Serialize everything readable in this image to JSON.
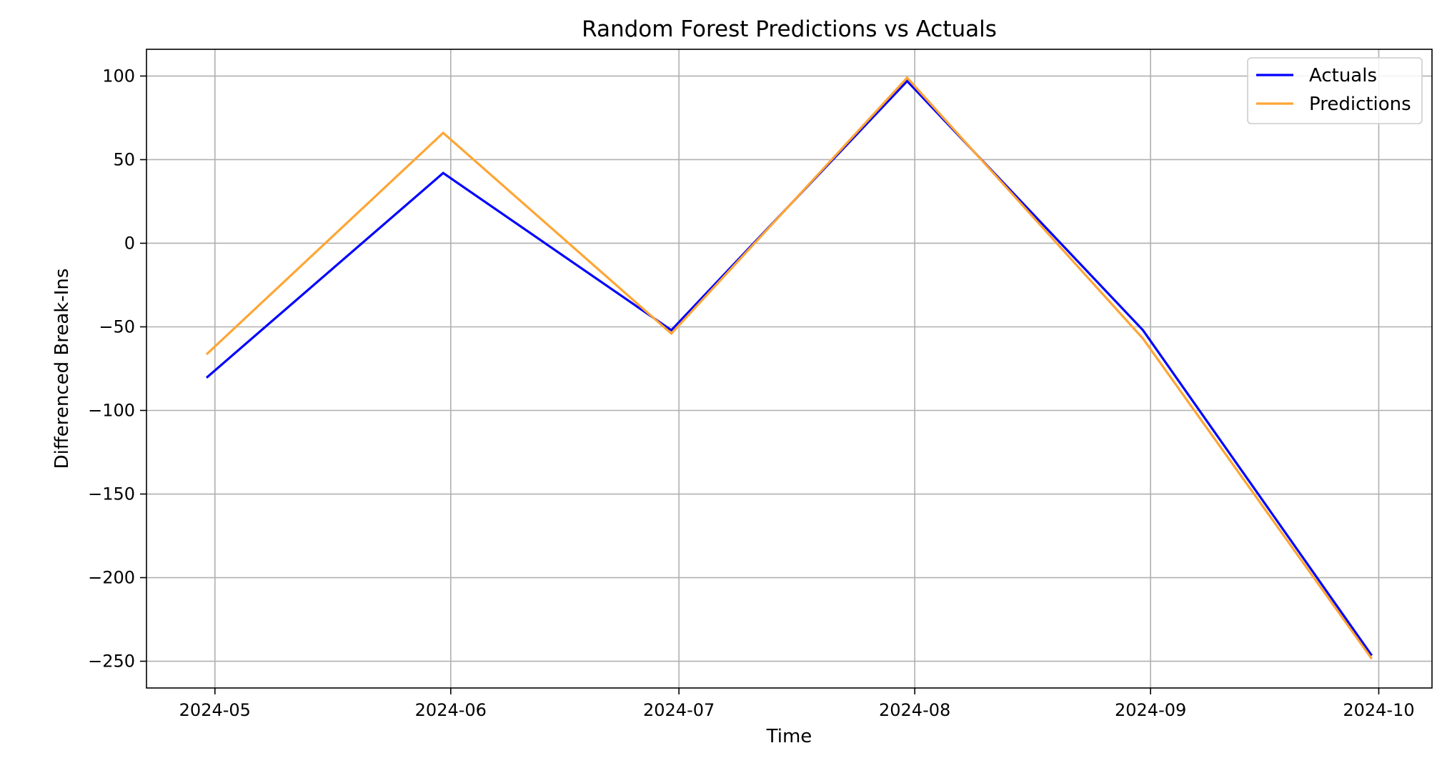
{
  "chart_data": {
    "type": "line",
    "title": "Random Forest Predictions vs Actuals",
    "xlabel": "Time",
    "ylabel": "Differenced Break-Ins",
    "x": [
      "2024-04-30",
      "2024-05-31",
      "2024-06-30",
      "2024-07-31",
      "2024-08-31",
      "2024-09-30"
    ],
    "x_ticks": [
      "2024-05",
      "2024-06",
      "2024-07",
      "2024-08",
      "2024-09",
      "2024-10"
    ],
    "x_tick_dates": [
      "2024-05-01",
      "2024-06-01",
      "2024-07-01",
      "2024-08-01",
      "2024-09-01",
      "2024-10-01"
    ],
    "xlim": [
      "2024-04-22",
      "2024-10-08"
    ],
    "y_ticks": [
      100,
      50,
      0,
      -50,
      -100,
      -150,
      -200,
      -250
    ],
    "y_tick_labels": [
      "100",
      "50",
      "0",
      "−50",
      "−100",
      "−150",
      "−200",
      "−250"
    ],
    "ylim": [
      -266,
      116
    ],
    "grid": true,
    "legend_position": "top-right",
    "series": [
      {
        "name": "Actuals",
        "color": "#0000ff",
        "values": [
          -80,
          42,
          -52,
          97,
          -52,
          -246
        ]
      },
      {
        "name": "Predictions",
        "color": "#ffa533",
        "values": [
          -66,
          66,
          -54,
          99,
          -57,
          -248
        ]
      }
    ]
  }
}
